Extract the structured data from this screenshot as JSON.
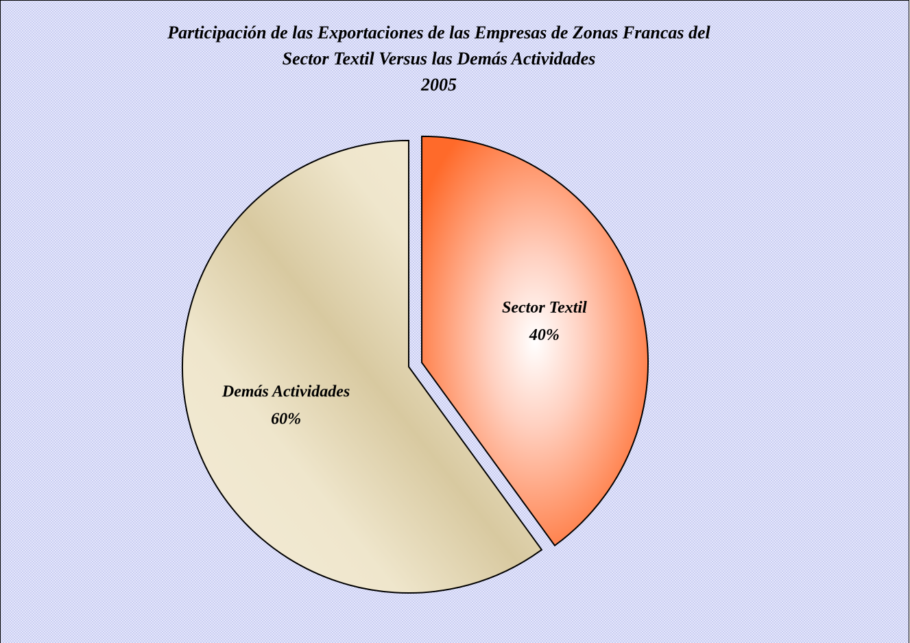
{
  "chart_data": {
    "type": "pie",
    "title": [
      "Participación de las Exportaciones de las Empresas de Zonas Francas del",
      "Sector Textil Versus las Demás Actividades",
      "2005"
    ],
    "categories": [
      "Sector Textil",
      "Demás Actividades"
    ],
    "values": [
      40,
      60
    ],
    "value_labels": [
      "40%",
      "60%"
    ],
    "colors": [
      "#ff6a2a",
      "#d8c9a0"
    ]
  }
}
